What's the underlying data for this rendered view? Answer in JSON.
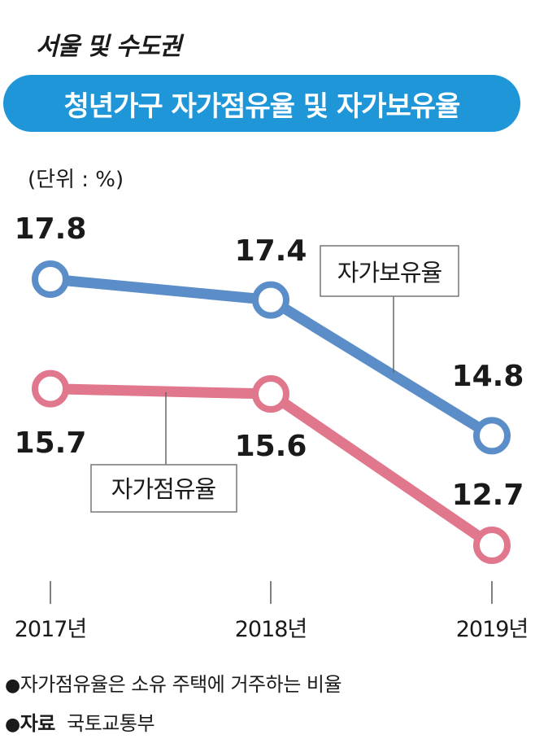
{
  "header": {
    "subtitle": "서울 및 수도권",
    "title": "청년가구 자가점유율 및 자가보유율",
    "unit": "(단위 : %)"
  },
  "chart_data": {
    "type": "line",
    "categories": [
      "2017년",
      "2018년",
      "2019년"
    ],
    "series": [
      {
        "name": "자가보유율",
        "values": [
          17.8,
          17.4,
          14.8
        ],
        "value_labels": [
          "17.8",
          "17.4",
          "14.8"
        ],
        "color": "#5b8ec9"
      },
      {
        "name": "자가점유율",
        "values": [
          15.7,
          15.6,
          12.7
        ],
        "value_labels": [
          "15.7",
          "15.6",
          "12.7"
        ],
        "color": "#e0778d"
      }
    ],
    "grid": false
  },
  "notes": {
    "bullet": "●",
    "definition": "자가점유율은 소유 주택에 거주하는 비율",
    "source_label": "자료",
    "source": "국토교통부"
  }
}
